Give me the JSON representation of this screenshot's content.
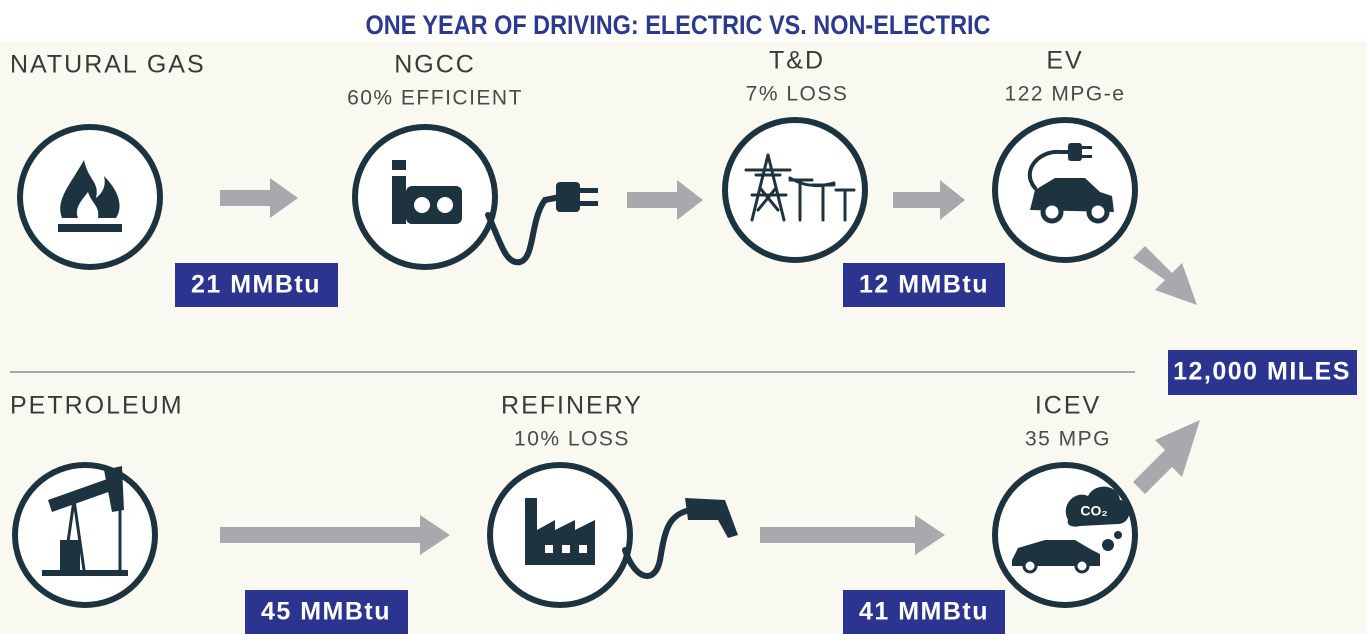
{
  "title": "ONE YEAR OF DRIVING:  ELECTRIC VS. NON-ELECTRIC",
  "electric": {
    "source": "NATURAL GAS",
    "stages": [
      {
        "label": "NGCC",
        "note": "60% EFFICIENT"
      },
      {
        "label": "T&D",
        "note": "7% LOSS"
      },
      {
        "label": "EV",
        "note": "122 MPG-e"
      }
    ],
    "energy": [
      "21 MMBtu",
      "12 MMBtu"
    ]
  },
  "petroleum": {
    "source": "PETROLEUM",
    "stages": [
      {
        "label": "REFINERY",
        "note": "10% LOSS"
      },
      {
        "label": "ICEV",
        "note": "35 MPG",
        "icon_text": "CO₂"
      }
    ],
    "energy": [
      "45 MMBtu",
      "41 MMBtu"
    ]
  },
  "result": "12,000 MILES"
}
